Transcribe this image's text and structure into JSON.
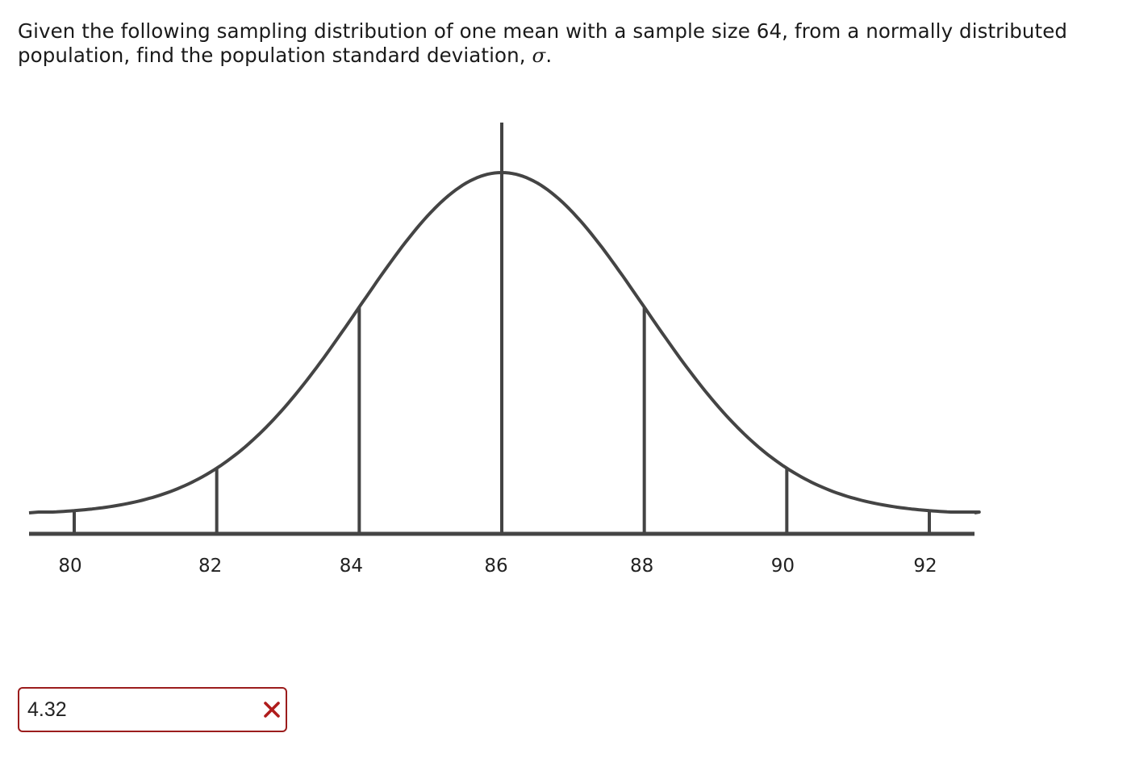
{
  "question": {
    "text_before": "Given the following sampling distribution of one mean with a sample size 64, from a normally distributed population, find the population standard deviation, ",
    "symbol": "σ",
    "text_after": "."
  },
  "chart_data": {
    "type": "normal-curve",
    "title": "",
    "xlabel": "",
    "ylabel": "",
    "mean": 86,
    "standard_error": 2,
    "vertical_lines_at": [
      80,
      82,
      84,
      86,
      88,
      90,
      92
    ],
    "x_tick_labels": [
      "80",
      "82",
      "84",
      "86",
      "88",
      "90",
      "92"
    ],
    "xlim": [
      79.5,
      92.7
    ],
    "line_color": "#444444",
    "grid": false
  },
  "answer": {
    "value": "4.32",
    "status": "incorrect",
    "status_icon": "close-icon",
    "border_color": "#9b1c1c",
    "icon_color": "#b01c1c"
  }
}
